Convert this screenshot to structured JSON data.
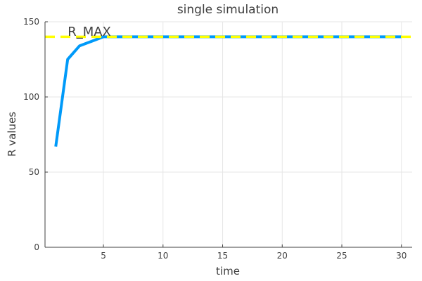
{
  "chart_data": {
    "type": "line",
    "title": "single simulation",
    "xlabel": "time",
    "ylabel": "R values",
    "xlim": [
      0.1,
      30.9
    ],
    "ylim": [
      0,
      150
    ],
    "x_ticks": [
      5,
      10,
      15,
      20,
      25,
      30
    ],
    "y_ticks": [
      0,
      50,
      100,
      150
    ],
    "grid": true,
    "legend": "none",
    "series": [
      {
        "color": "#009af9",
        "x": [
          1,
          2,
          3,
          4,
          5,
          6,
          7,
          8,
          9,
          10,
          11,
          12,
          13,
          14,
          15,
          16,
          17,
          18,
          19,
          20,
          21,
          22,
          23,
          24,
          25,
          26,
          27,
          28,
          29,
          30
        ],
        "values": [
          67,
          125,
          134,
          137,
          140,
          140,
          140,
          140,
          140,
          140,
          140,
          140,
          140,
          140,
          140,
          140,
          140,
          140,
          140,
          140,
          140,
          140,
          140,
          140,
          140,
          140,
          140,
          140,
          140,
          140
        ]
      }
    ],
    "reference_line": {
      "y": 140,
      "color": "#ffff00",
      "style": "dashed"
    },
    "annotations": [
      {
        "text": "R_MAX",
        "x": 2.0,
        "y": 144
      }
    ]
  }
}
